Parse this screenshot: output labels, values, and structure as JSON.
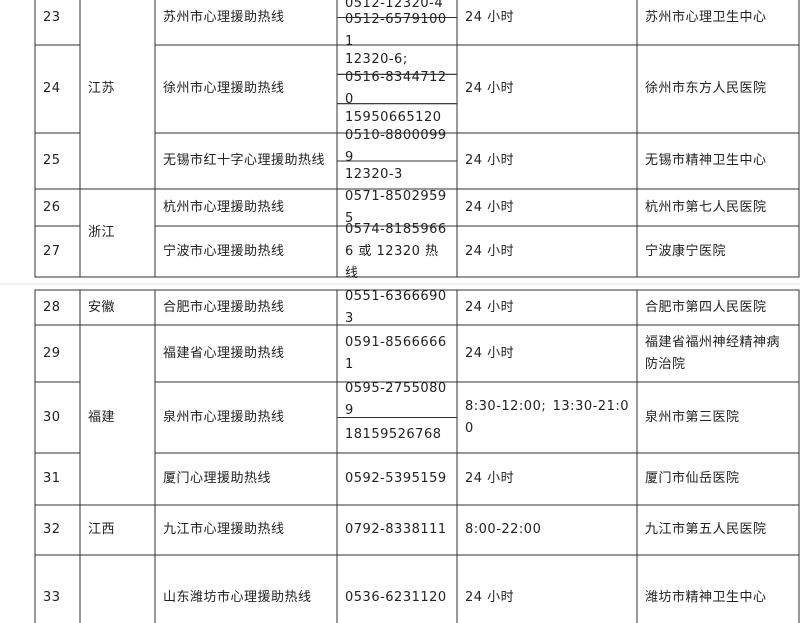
{
  "table": {
    "groups": [
      {
        "province": "江苏",
        "rows": [
          {
            "no": 23,
            "name": "苏州市心理援助热线",
            "phones": [
              "0512-12320-4",
              "0512-65791001"
            ],
            "hours": "24 小时",
            "org": "苏州市心理卫生中心"
          },
          {
            "no": 24,
            "name": "徐州市心理援助热线",
            "phones": [
              "12320-6;",
              "0516-83447120",
              "15950665120"
            ],
            "hours": "24 小时",
            "org": "徐州市东方人民医院"
          },
          {
            "no": 25,
            "name": "无锡市红十字心理援助热线",
            "phones": [
              "0510-88000999",
              "12320-3"
            ],
            "hours": "24 小时",
            "org": "无锡市精神卫生中心"
          }
        ]
      },
      {
        "province": "浙江",
        "rows": [
          {
            "no": 26,
            "name": "杭州市心理援助热线",
            "phones": [
              "0571-85029595"
            ],
            "hours": "24 小时",
            "org": "杭州市第七人民医院"
          },
          {
            "no": 27,
            "name": "宁波市心理援助热线",
            "phones": [
              "0574-81859666 或 12320 热线"
            ],
            "hours": "24 小时",
            "org": "宁波康宁医院"
          }
        ]
      },
      {
        "province": "安徽",
        "rows": [
          {
            "no": 28,
            "name": "合肥市心理援助热线",
            "phones": [
              "0551-63666903"
            ],
            "hours": "24 小时",
            "org": "合肥市第四人民医院"
          }
        ]
      },
      {
        "province": "福建",
        "rows": [
          {
            "no": 29,
            "name": "福建省心理援助热线",
            "phones": [
              "0591-85666661"
            ],
            "hours": "24 小时",
            "org": "福建省福州神经精神病防治院"
          },
          {
            "no": 30,
            "name": "泉州市心理援助热线",
            "phones": [
              "0595-27550809",
              "18159526768"
            ],
            "hours": "8:30-12:00; 13:30-21:00",
            "org": "泉州市第三医院"
          },
          {
            "no": 31,
            "name": "厦门心理援助热线",
            "phones": [
              "0592-5395159"
            ],
            "hours": "24 小时",
            "org": "厦门市仙岳医院"
          }
        ]
      },
      {
        "province": "江西",
        "rows": [
          {
            "no": 32,
            "name": "九江市心理援助热线",
            "phones": [
              "0792-8338111"
            ],
            "hours": "8:00-22:00",
            "org": "九江市第五人民医院"
          }
        ]
      },
      {
        "rows": [
          {
            "no": 33,
            "name": "山东潍坊市心理援助热线",
            "phones": [
              "0536-6231120"
            ],
            "hours": "24 小时",
            "org": "潍坊市精神卫生中心"
          }
        ]
      }
    ]
  }
}
